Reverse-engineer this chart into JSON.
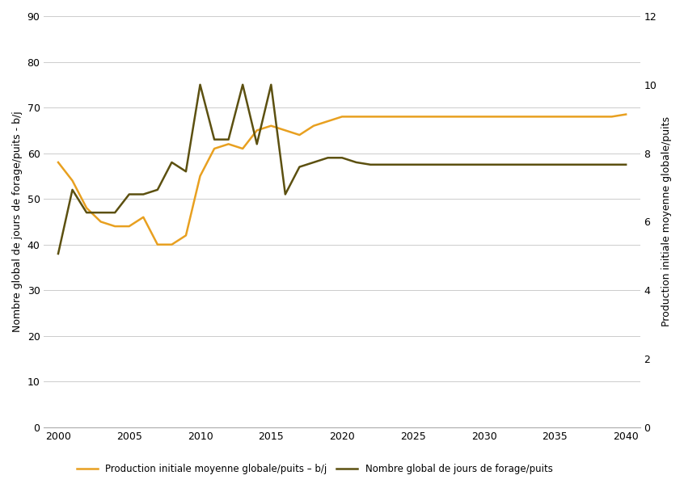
{
  "years_orange": [
    2000,
    2001,
    2002,
    2003,
    2004,
    2005,
    2006,
    2007,
    2008,
    2009,
    2010,
    2011,
    2012,
    2013,
    2014,
    2015,
    2016,
    2017,
    2018,
    2019,
    2020,
    2021,
    2022,
    2023,
    2024,
    2025,
    2026,
    2027,
    2028,
    2029,
    2030,
    2031,
    2032,
    2033,
    2034,
    2035,
    2036,
    2037,
    2038,
    2039,
    2040
  ],
  "values_orange": [
    58,
    54,
    48,
    45,
    44,
    44,
    46,
    40,
    40,
    42,
    55,
    61,
    62,
    61,
    65,
    66,
    65,
    64,
    66,
    67,
    68,
    68,
    68,
    68,
    68,
    68,
    68,
    68,
    68,
    68,
    68,
    68,
    68,
    68,
    68,
    68,
    68,
    68,
    68,
    68,
    68.5
  ],
  "years_dark": [
    2000,
    2001,
    2002,
    2003,
    2004,
    2005,
    2006,
    2007,
    2008,
    2009,
    2010,
    2011,
    2012,
    2013,
    2014,
    2015,
    2016,
    2017,
    2018,
    2019,
    2020,
    2021,
    2022,
    2023,
    2024,
    2025,
    2026,
    2027,
    2028,
    2029,
    2030,
    2031,
    2032,
    2033,
    2034,
    2035,
    2036,
    2037,
    2038,
    2039,
    2040
  ],
  "values_dark": [
    38,
    52,
    47,
    47,
    47,
    51,
    51,
    52,
    58,
    56,
    75,
    63,
    63,
    75,
    62,
    75,
    51,
    57,
    58,
    59,
    59,
    58,
    57.5,
    57.5,
    57.5,
    57.5,
    57.5,
    57.5,
    57.5,
    57.5,
    57.5,
    57.5,
    57.5,
    57.5,
    57.5,
    57.5,
    57.5,
    57.5,
    57.5,
    57.5,
    57.5
  ],
  "color_orange": "#E8A020",
  "color_dark": "#5C5010",
  "ylabel_left": "Nombre global de jours de forage/puits - b/j",
  "ylabel_right": "Production initiale moyenne globale/puits",
  "ylim_left": [
    0,
    90
  ],
  "ylim_right": [
    0,
    12
  ],
  "xlim": [
    1999,
    2041
  ],
  "xticks": [
    2000,
    2005,
    2010,
    2015,
    2020,
    2025,
    2030,
    2035,
    2040
  ],
  "yticks_left": [
    0,
    10,
    20,
    30,
    40,
    50,
    60,
    70,
    80,
    90
  ],
  "yticks_right": [
    0,
    2,
    4,
    6,
    8,
    10,
    12
  ],
  "legend_orange": "Production initiale moyenne globale/puits – b/j",
  "legend_dark": "Nombre global de jours de forage/puits",
  "linewidth": 1.8,
  "grid_color": "#cccccc",
  "bg_color": "#ffffff"
}
